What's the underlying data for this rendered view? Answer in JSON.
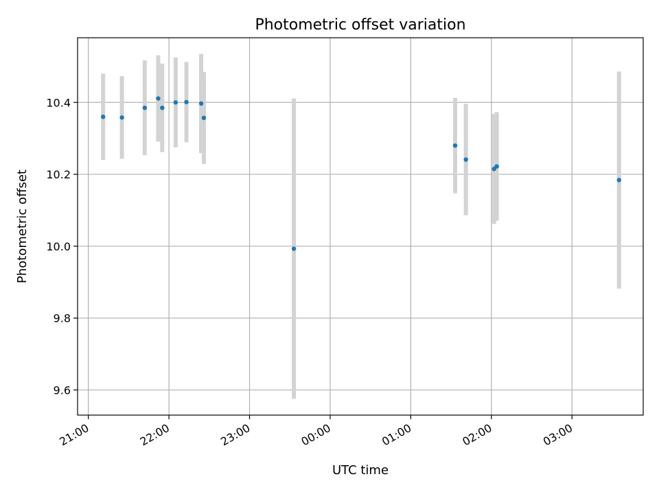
{
  "chart_data": {
    "type": "scatter",
    "title": "Photometric offset variation",
    "xlabel": "UTC time",
    "ylabel": "Photometric offset",
    "x_axis_kind": "time",
    "xlim": [
      "20:52",
      "03:53"
    ],
    "ylim": [
      9.53,
      10.58
    ],
    "y_ticks": [
      9.6,
      9.8,
      10.0,
      10.2,
      10.4
    ],
    "x_ticks": [
      "21:00",
      "22:00",
      "23:00",
      "00:00",
      "01:00",
      "02:00",
      "03:00"
    ],
    "grid": true,
    "marker_color": "#1f77b4",
    "errorbar_color": "#d3d3d3",
    "points": [
      {
        "x": "21:11",
        "y": 10.36,
        "err": 0.12
      },
      {
        "x": "21:25",
        "y": 10.358,
        "err": 0.115
      },
      {
        "x": "21:42",
        "y": 10.385,
        "err": 0.132
      },
      {
        "x": "21:52",
        "y": 10.411,
        "err": 0.12
      },
      {
        "x": "21:55",
        "y": 10.385,
        "err": 0.123
      },
      {
        "x": "22:05",
        "y": 10.4,
        "err": 0.125
      },
      {
        "x": "22:13",
        "y": 10.401,
        "err": 0.112
      },
      {
        "x": "22:24",
        "y": 10.397,
        "err": 0.138
      },
      {
        "x": "22:26",
        "y": 10.357,
        "err": 0.128
      },
      {
        "x": "23:33",
        "y": 9.993,
        "err": 0.418
      },
      {
        "x": "01:33",
        "y": 10.28,
        "err": 0.133
      },
      {
        "x": "01:41",
        "y": 10.241,
        "err": 0.155
      },
      {
        "x": "02:02",
        "y": 10.215,
        "err": 0.153
      },
      {
        "x": "02:04",
        "y": 10.222,
        "err": 0.151
      },
      {
        "x": "03:35",
        "y": 10.184,
        "err": 0.302
      }
    ]
  }
}
